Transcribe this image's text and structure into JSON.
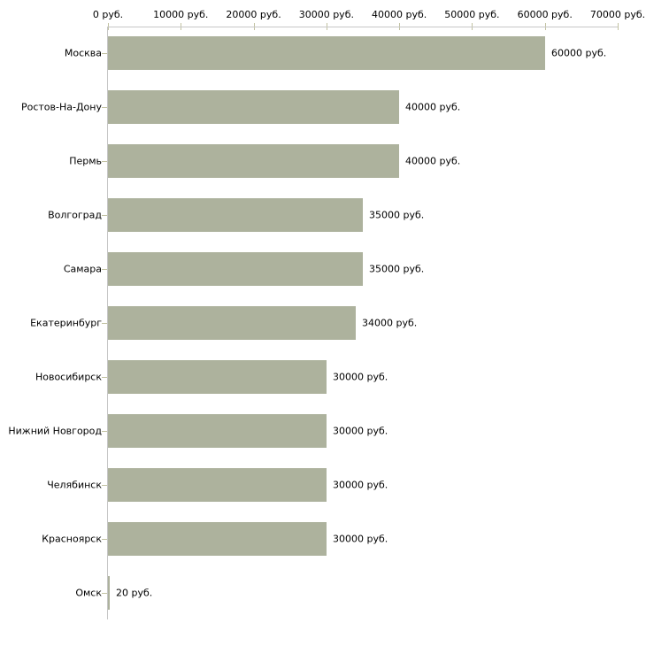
{
  "chart_data": {
    "type": "bar",
    "orientation": "horizontal",
    "title": "",
    "xlabel": "",
    "ylabel": "",
    "grid": false,
    "legend": false,
    "categories": [
      "Москва",
      "Ростов-На-Дону",
      "Пермь",
      "Волгоград",
      "Самара",
      "Екатеринбург",
      "Новосибирск",
      "Нижний Новгород",
      "Челябинск",
      "Красноярск",
      "Омск"
    ],
    "values": [
      60000,
      40000,
      40000,
      35000,
      35000,
      34000,
      30000,
      30000,
      30000,
      30000,
      20
    ],
    "value_labels": [
      "60000 руб.",
      "40000 руб.",
      "40000 руб.",
      "35000 руб.",
      "35000 руб.",
      "34000 руб.",
      "30000 руб.",
      "30000 руб.",
      "30000 руб.",
      "30000 руб.",
      "20 руб."
    ],
    "x_axis": {
      "position": "top",
      "range": [
        0,
        70000
      ],
      "ticks": [
        0,
        10000,
        20000,
        30000,
        40000,
        50000,
        60000,
        70000
      ],
      "tick_labels": [
        "0 руб.",
        "10000 руб.",
        "20000 руб.",
        "30000 руб.",
        "40000 руб.",
        "50000 руб.",
        "60000 руб.",
        "70000 руб."
      ]
    },
    "colors": {
      "bar_fill": "#adb29d",
      "axis_line": "#c6c6c6",
      "tick_mark": "#c2c2a2",
      "text": "#000000",
      "background": "#ffffff"
    }
  }
}
